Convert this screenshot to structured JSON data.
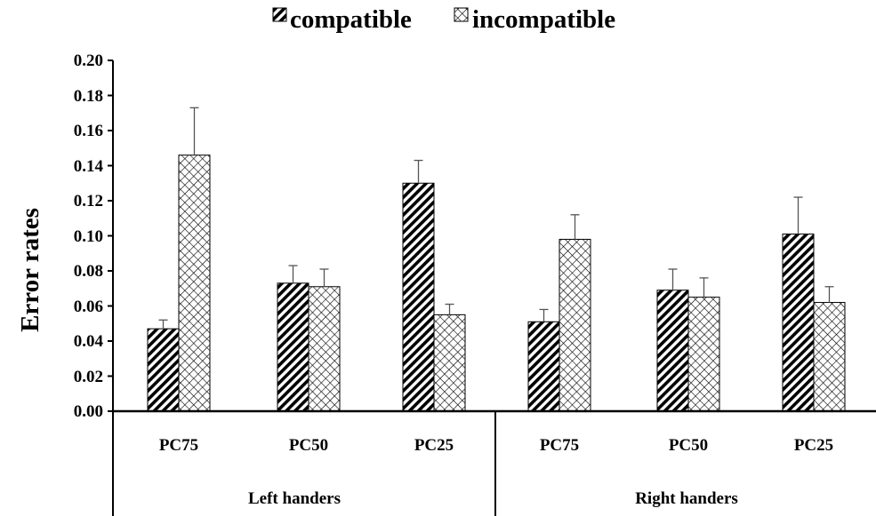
{
  "chart_data": {
    "type": "bar",
    "title": "",
    "ylabel": "Error rates",
    "xlabel": "",
    "ylim": [
      0,
      0.2
    ],
    "yticks": [
      "0.00",
      "0.02",
      "0.04",
      "0.06",
      "0.08",
      "0.10",
      "0.12",
      "0.14",
      "0.16",
      "0.18",
      "0.20"
    ],
    "groups": [
      "Left handers",
      "Right handers"
    ],
    "categories": [
      "PC75",
      "PC50",
      "PC25",
      "PC75",
      "PC50",
      "PC25"
    ],
    "legend_position": "top",
    "series": [
      {
        "name": "compatible",
        "pattern": "diagonal-hatch",
        "values": [
          0.047,
          0.073,
          0.13,
          0.051,
          0.069,
          0.101
        ],
        "errors": [
          0.005,
          0.01,
          0.013,
          0.007,
          0.012,
          0.021
        ]
      },
      {
        "name": "incompatible",
        "pattern": "crosshatch",
        "values": [
          0.146,
          0.071,
          0.055,
          0.098,
          0.065,
          0.062
        ],
        "errors": [
          0.027,
          0.01,
          0.006,
          0.014,
          0.011,
          0.009
        ]
      }
    ]
  }
}
